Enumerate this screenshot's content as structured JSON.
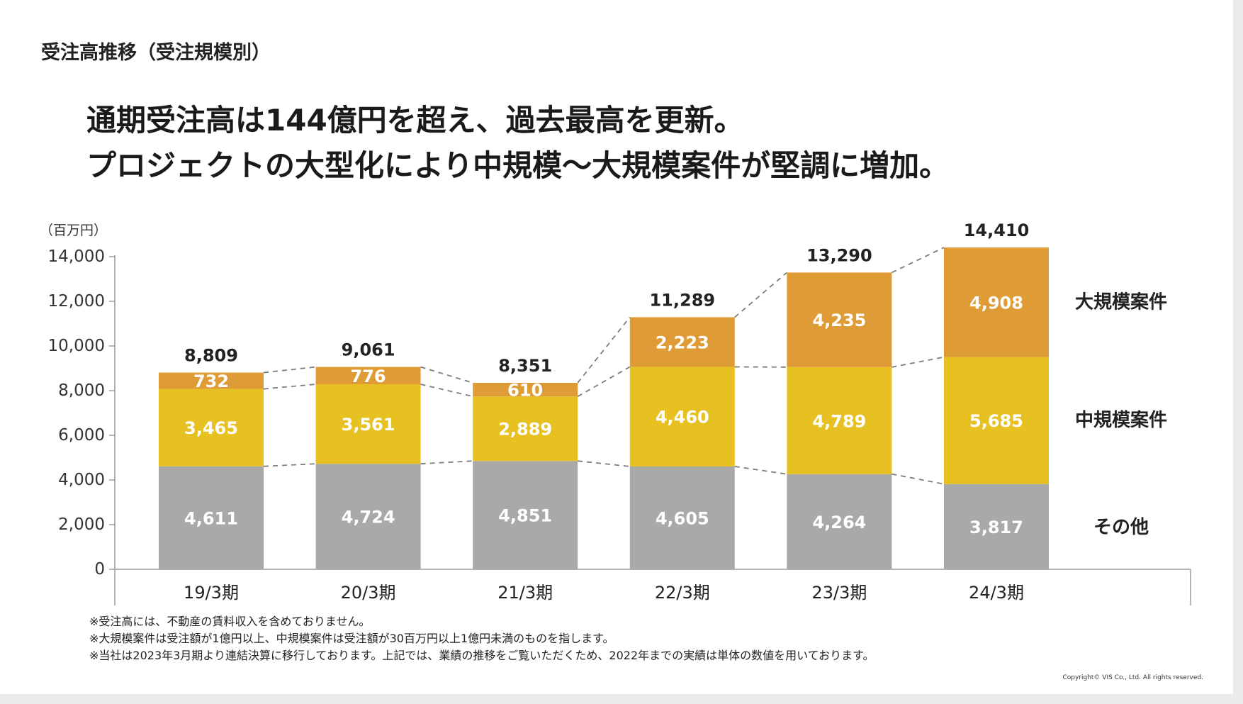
{
  "page": {
    "section_title": "受注高推移（受注規模別）",
    "headline_line1": "通期受注高は144億円を超え、過去最高を更新。",
    "headline_line2": "プロジェクトの大型化により中規模～大規模案件が堅調に増加。",
    "unit_label": "（百万円）",
    "notes": [
      "※受注高には、不動産の賃料収入を含めておりません。",
      "※大規模案件は受注額が1億円以上、中規模案件は受注額が30百万円以上1億円未満のものを指します。",
      "※当社は2023年3月期より連結決算に移行しております。上記では、業績の推移をご覧いただくため、2022年までの実績は単体の数値を用いております。"
    ],
    "copyright": "Copyright© VIS Co., Ltd. All rights reserved."
  },
  "chart_data": {
    "type": "bar",
    "stacked": true,
    "categories": [
      "19/3期",
      "20/3期",
      "21/3期",
      "22/3期",
      "23/3期",
      "24/3期"
    ],
    "series": [
      {
        "name": "その他",
        "values": [
          4611,
          4724,
          4851,
          4605,
          4264,
          3817
        ],
        "labels": [
          "4,611",
          "4,724",
          "4,851",
          "4,605",
          "4,264",
          "3,817"
        ],
        "color": "#a9a9a8"
      },
      {
        "name": "中規模案件",
        "values": [
          3465,
          3561,
          2889,
          4460,
          4789,
          5685
        ],
        "labels": [
          "3,465",
          "3,561",
          "2,889",
          "4,460",
          "4,789",
          "5,685"
        ],
        "color": "#e7c022"
      },
      {
        "name": "大規模案件",
        "values": [
          732,
          776,
          610,
          2223,
          4235,
          4908
        ],
        "labels": [
          "732",
          "776",
          "610",
          "2,223",
          "4,235",
          "4,908"
        ],
        "color": "#df9b35"
      }
    ],
    "totals": [
      8809,
      9061,
      8351,
      11289,
      13290,
      14410
    ],
    "total_labels": [
      "8,809",
      "9,061",
      "8,351",
      "11,289",
      "13,290",
      "14,410"
    ],
    "ylabel": "（百万円）",
    "ylim": [
      0,
      14000
    ],
    "yticks": [
      0,
      2000,
      4000,
      6000,
      8000,
      10000,
      12000,
      14000
    ],
    "ytick_labels": [
      "0",
      "2,000",
      "4,000",
      "6,000",
      "8,000",
      "10,000",
      "12,000",
      "14,000"
    ],
    "legend": "right",
    "connector_lines": "dashed"
  }
}
